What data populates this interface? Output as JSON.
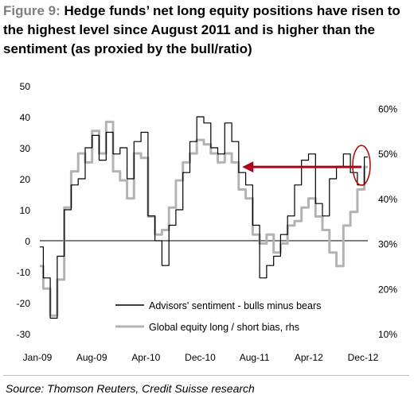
{
  "title": {
    "label": "Figure 9:",
    "text": "Hedge funds’ net long equity positions have risen to the highest level since August 2011 and is higher than the sentiment (as proxied by the bull/ratio)"
  },
  "source": "Source: Thomson Reuters, Credit Suisse research",
  "colors": {
    "series_sentiment": "#000000",
    "series_bias": "#b3b3b3",
    "arrow": "#b0001c",
    "circle": "#c00000",
    "zero_line": "#000000"
  },
  "chart_data": {
    "type": "line",
    "x_tick_labels": [
      "Jan-09",
      "Aug-09",
      "Apr-10",
      "Dec-10",
      "Aug-11",
      "Apr-12",
      "Dec-12"
    ],
    "x_range": [
      "2009-01",
      "2012-12"
    ],
    "y_left": {
      "range": [
        -30,
        50
      ],
      "ticks": [
        -30,
        -20,
        -10,
        0,
        10,
        20,
        30,
        40,
        50
      ]
    },
    "y_right": {
      "range": [
        0.1,
        0.65
      ],
      "ticks": [
        "10%",
        "20%",
        "30%",
        "40%",
        "50%",
        "60%"
      ],
      "tick_values": [
        0.1,
        0.2,
        0.3,
        0.4,
        0.5,
        0.6
      ]
    },
    "legend": {
      "placement": "bottom-center"
    },
    "series": [
      {
        "name": "Advisors' sentiment - bulls minus bears",
        "axis": "left",
        "x": [
          "2009-01",
          "2009-02",
          "2009-03",
          "2009-04",
          "2009-05",
          "2009-06",
          "2009-07",
          "2009-08",
          "2009-09",
          "2009-10",
          "2009-11",
          "2009-12",
          "2010-01",
          "2010-02",
          "2010-03",
          "2010-04",
          "2010-05",
          "2010-06",
          "2010-07",
          "2010-08",
          "2010-09",
          "2010-10",
          "2010-11",
          "2010-12",
          "2011-01",
          "2011-02",
          "2011-03",
          "2011-04",
          "2011-05",
          "2011-06",
          "2011-07",
          "2011-08",
          "2011-09",
          "2011-10",
          "2011-11",
          "2011-12",
          "2012-01",
          "2012-02",
          "2012-03",
          "2012-04",
          "2012-05",
          "2012-06",
          "2012-07",
          "2012-08",
          "2012-09",
          "2012-10",
          "2012-11",
          "2012-12"
        ],
        "values": [
          -2,
          -12,
          -25,
          -5,
          10,
          18,
          20,
          30,
          34,
          26,
          35,
          28,
          30,
          20,
          32,
          35,
          8,
          0,
          -8,
          5,
          10,
          22,
          32,
          40,
          38,
          30,
          28,
          38,
          32,
          22,
          18,
          5,
          -12,
          -8,
          -5,
          2,
          8,
          18,
          26,
          28,
          12,
          8,
          20,
          24,
          28,
          22,
          18,
          27
        ]
      },
      {
        "name": "Global equity long / short bias, rhs",
        "axis": "right",
        "x": [
          "2009-01",
          "2009-02",
          "2009-03",
          "2009-04",
          "2009-05",
          "2009-06",
          "2009-07",
          "2009-08",
          "2009-09",
          "2009-10",
          "2009-11",
          "2009-12",
          "2010-01",
          "2010-02",
          "2010-03",
          "2010-04",
          "2010-05",
          "2010-06",
          "2010-07",
          "2010-08",
          "2010-09",
          "2010-10",
          "2010-11",
          "2010-12",
          "2011-01",
          "2011-02",
          "2011-03",
          "2011-04",
          "2011-05",
          "2011-06",
          "2011-07",
          "2011-08",
          "2011-09",
          "2011-10",
          "2011-11",
          "2011-12",
          "2012-01",
          "2012-02",
          "2012-03",
          "2012-04",
          "2012-05",
          "2012-06",
          "2012-07",
          "2012-08",
          "2012-09",
          "2012-10",
          "2012-11",
          "2012-12"
        ],
        "values": [
          0.25,
          0.2,
          0.14,
          0.22,
          0.38,
          0.46,
          0.5,
          0.48,
          0.55,
          0.5,
          0.57,
          0.46,
          0.44,
          0.4,
          0.5,
          0.49,
          0.36,
          0.32,
          0.33,
          0.38,
          0.44,
          0.48,
          0.5,
          0.53,
          0.52,
          0.5,
          0.48,
          0.5,
          0.48,
          0.42,
          0.4,
          0.32,
          0.3,
          0.32,
          0.28,
          0.3,
          0.34,
          0.35,
          0.38,
          0.4,
          0.36,
          0.33,
          0.28,
          0.25,
          0.34,
          0.37,
          0.42,
          0.47
        ]
      }
    ],
    "annotations": [
      {
        "type": "arrow",
        "from": [
          "2012-12",
          0.47
        ],
        "to": [
          "2011-06",
          0.47
        ],
        "axis": "right"
      },
      {
        "type": "circle",
        "at": [
          "2012-12",
          0.47
        ],
        "axis": "right"
      }
    ]
  }
}
